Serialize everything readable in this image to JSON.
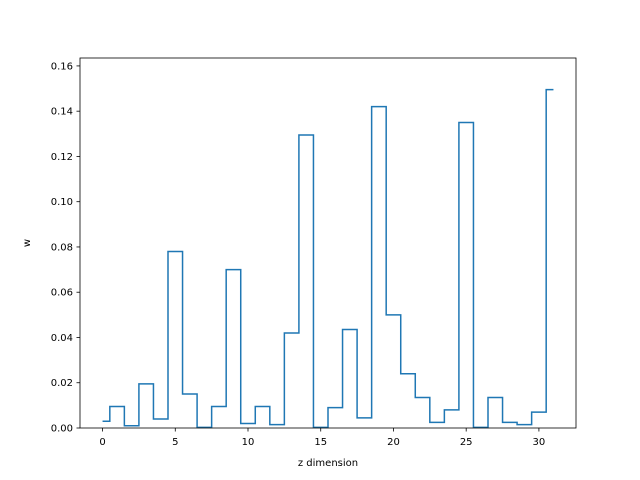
{
  "chart_data": {
    "type": "line",
    "style": "step",
    "xlabel": "z dimension",
    "ylabel": "w",
    "xlim": [
      -1.55,
      32.55
    ],
    "ylim": [
      0,
      0.1635
    ],
    "grid": false,
    "line_color": "#1f77b4",
    "x_ticks": [
      0,
      5,
      10,
      15,
      20,
      25,
      30
    ],
    "y_ticks": [
      0.0,
      0.02,
      0.04,
      0.06,
      0.08,
      0.1,
      0.12,
      0.14,
      0.16
    ],
    "x_tick_labels": [
      "0",
      "5",
      "10",
      "15",
      "20",
      "25",
      "30"
    ],
    "y_tick_labels": [
      "0.00",
      "0.02",
      "0.04",
      "0.06",
      "0.08",
      "0.10",
      "0.12",
      "0.14",
      "0.16"
    ],
    "x": [
      0,
      1,
      2,
      3,
      4,
      5,
      6,
      7,
      8,
      9,
      10,
      11,
      12,
      13,
      14,
      15,
      16,
      17,
      18,
      19,
      20,
      21,
      22,
      23,
      24,
      25,
      26,
      27,
      28,
      29,
      30,
      31
    ],
    "values": [
      0.003,
      0.0095,
      0.001,
      0.0195,
      0.004,
      0.078,
      0.015,
      0.0003,
      0.0095,
      0.07,
      0.002,
      0.0095,
      0.0015,
      0.042,
      0.1295,
      0.0003,
      0.009,
      0.0435,
      0.0045,
      0.142,
      0.05,
      0.024,
      0.0135,
      0.0025,
      0.008,
      0.135,
      0.0003,
      0.0135,
      0.0025,
      0.0015,
      0.007,
      0.1495
    ]
  }
}
